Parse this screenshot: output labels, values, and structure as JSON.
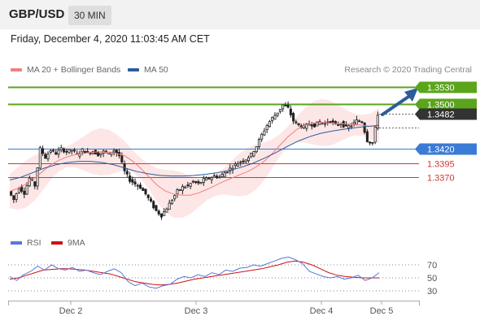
{
  "header": {
    "symbol": "GBP/USD",
    "timeframe": "30 MIN"
  },
  "datetime": "Friday, December 4, 2020 11:03:45 AM CET",
  "legend": {
    "ma20_label": "MA 20 + Bollinger Bands",
    "ma50_label": "MA 50",
    "ma20_color": "#f08080",
    "ma50_color": "#2e5c9a"
  },
  "credit": "Research © 2020 Trading Central",
  "rsi_legend": {
    "rsi_label": "RSI",
    "ma9_label": "9MA",
    "rsi_color": "#5577dd",
    "ma9_color": "#cc1111"
  },
  "chart_data": [
    {
      "type": "candlestick",
      "x_ticks": [
        "Dec 2",
        "Dec 3",
        "Dec 4",
        "Dec 5"
      ],
      "ylim": [
        1.328,
        1.354
      ],
      "levels": [
        {
          "name": "resistance-2",
          "value": "1.3530",
          "color": "#5aa51c",
          "style": "tag"
        },
        {
          "name": "resistance-1",
          "value": "1.3500",
          "color": "#5aa51c",
          "style": "tag"
        },
        {
          "name": "current-price",
          "value": "1.3482",
          "color": "#333333",
          "style": "tag"
        },
        {
          "name": "pivot",
          "value": "1.3420",
          "color": "#3a7bd5",
          "style": "tag"
        },
        {
          "name": "support-1",
          "value": "1.3395",
          "color": "#d63333",
          "style": "text"
        },
        {
          "name": "support-2",
          "value": "1.3370",
          "color": "#d63333",
          "style": "text"
        }
      ],
      "price_path": [
        1.3345,
        1.333,
        1.3352,
        1.3342,
        1.3368,
        1.3355,
        1.342,
        1.3405,
        1.3418,
        1.3412,
        1.342,
        1.3415,
        1.3418,
        1.341,
        1.3418,
        1.3413,
        1.3416,
        1.341,
        1.3415,
        1.3412,
        1.3418,
        1.3408,
        1.338,
        1.3365,
        1.3358,
        1.3352,
        1.334,
        1.3325,
        1.331,
        1.3302,
        1.3315,
        1.333,
        1.3345,
        1.3352,
        1.3355,
        1.3362,
        1.3358,
        1.3365,
        1.3368,
        1.3372,
        1.337,
        1.3378,
        1.3385,
        1.3392,
        1.3398,
        1.3402,
        1.341,
        1.3425,
        1.3445,
        1.3462,
        1.3475,
        1.3485,
        1.3498,
        1.3492,
        1.347,
        1.3462,
        1.3458,
        1.3465,
        1.3462,
        1.3468,
        1.3465,
        1.347,
        1.3462,
        1.3466,
        1.3458,
        1.3462,
        1.347,
        1.3468,
        1.3435,
        1.343,
        1.3482
      ],
      "ma20": [
        1.3345,
        1.335,
        1.3358,
        1.3368,
        1.338,
        1.3392,
        1.34,
        1.3406,
        1.341,
        1.3412,
        1.3414,
        1.3415,
        1.3414,
        1.3412,
        1.3408,
        1.3398,
        1.3385,
        1.337,
        1.3355,
        1.3345,
        1.334,
        1.3338,
        1.3338,
        1.3342,
        1.3348,
        1.3355,
        1.3362,
        1.3368,
        1.3374,
        1.338,
        1.3388,
        1.3398,
        1.3412,
        1.3428,
        1.3443,
        1.3455,
        1.3462,
        1.3466,
        1.3467,
        1.3466,
        1.3465,
        1.3464,
        1.3463,
        1.3462,
        1.346,
        1.3462
      ],
      "ma50": [
        1.3365,
        1.337,
        1.3378,
        1.3386,
        1.3392,
        1.3396,
        1.3398,
        1.3398,
        1.3396,
        1.3392,
        1.3386,
        1.338,
        1.3376,
        1.3373,
        1.3372,
        1.3372,
        1.3373,
        1.3375,
        1.3378,
        1.3382,
        1.3387,
        1.3394,
        1.3403,
        1.3413,
        1.3424,
        1.3434,
        1.3442,
        1.3448,
        1.3452,
        1.3455,
        1.3458,
        1.346,
        1.3462
      ],
      "forecast_target": "1.3530"
    },
    {
      "type": "line",
      "name_rsi": "RSI",
      "name_ma": "9MA",
      "y_ticks": [
        "70",
        "50",
        "30"
      ],
      "rsi": [
        52,
        46,
        55,
        60,
        68,
        62,
        70,
        64,
        62,
        66,
        60,
        62,
        58,
        55,
        60,
        64,
        58,
        44,
        38,
        42,
        36,
        34,
        38,
        40,
        48,
        52,
        50,
        55,
        52,
        58,
        55,
        62,
        60,
        65,
        66,
        70,
        68,
        72,
        76,
        80,
        82,
        78,
        72,
        60,
        56,
        52,
        50,
        52,
        48,
        50,
        54,
        46,
        50,
        58
      ],
      "ma9": [
        48,
        50,
        54,
        58,
        62,
        63,
        64,
        64,
        63,
        62,
        60,
        58,
        56,
        52,
        48,
        44,
        42,
        40,
        39,
        40,
        42,
        45,
        48,
        50,
        52,
        54,
        56,
        58,
        60,
        62,
        64,
        67,
        70,
        74,
        76,
        74,
        70,
        64,
        58,
        54,
        52,
        51,
        50,
        50,
        50
      ]
    }
  ]
}
